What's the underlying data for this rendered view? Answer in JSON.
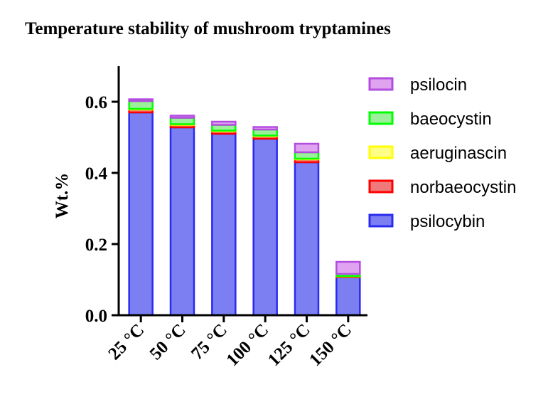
{
  "chart_data": {
    "type": "bar",
    "stacked": true,
    "title": "Temperature stability of mushroom tryptamines",
    "xlabel": "",
    "ylabel": "Wt.%",
    "ylim": [
      0,
      0.7
    ],
    "yticks": [
      0.0,
      0.2,
      0.4,
      0.6
    ],
    "ytick_labels": [
      "0.0",
      "0.2",
      "0.4",
      "0.6"
    ],
    "categories": [
      "25 °C",
      "50 °C",
      "75 °C",
      "100 °C",
      "125 °C",
      "150 °C"
    ],
    "grid": false,
    "legend_position": "right",
    "series": [
      {
        "name": "psilocybin",
        "color": "#7b7ff2",
        "edge": "#2b2bf0",
        "values": [
          0.57,
          0.528,
          0.51,
          0.496,
          0.43,
          0.107
        ]
      },
      {
        "name": "norbaeocystin",
        "color": "#f07a7a",
        "edge": "#ff0000",
        "values": [
          0.008,
          0.007,
          0.007,
          0.007,
          0.008,
          0.002
        ]
      },
      {
        "name": "aeruginascin",
        "color": "#ffff88",
        "edge": "#ffff00",
        "values": [
          0.002,
          0.002,
          0.002,
          0.002,
          0.002,
          0.001
        ]
      },
      {
        "name": "baeocystin",
        "color": "#9cf09c",
        "edge": "#00ff00",
        "values": [
          0.022,
          0.018,
          0.016,
          0.017,
          0.018,
          0.006
        ]
      },
      {
        "name": "psilocin",
        "color": "#dfa3f0",
        "edge": "#b34de0",
        "values": [
          0.005,
          0.006,
          0.009,
          0.007,
          0.024,
          0.034
        ]
      }
    ],
    "legend_order": [
      "psilocin",
      "baeocystin",
      "aeruginascin",
      "norbaeocystin",
      "psilocybin"
    ]
  }
}
